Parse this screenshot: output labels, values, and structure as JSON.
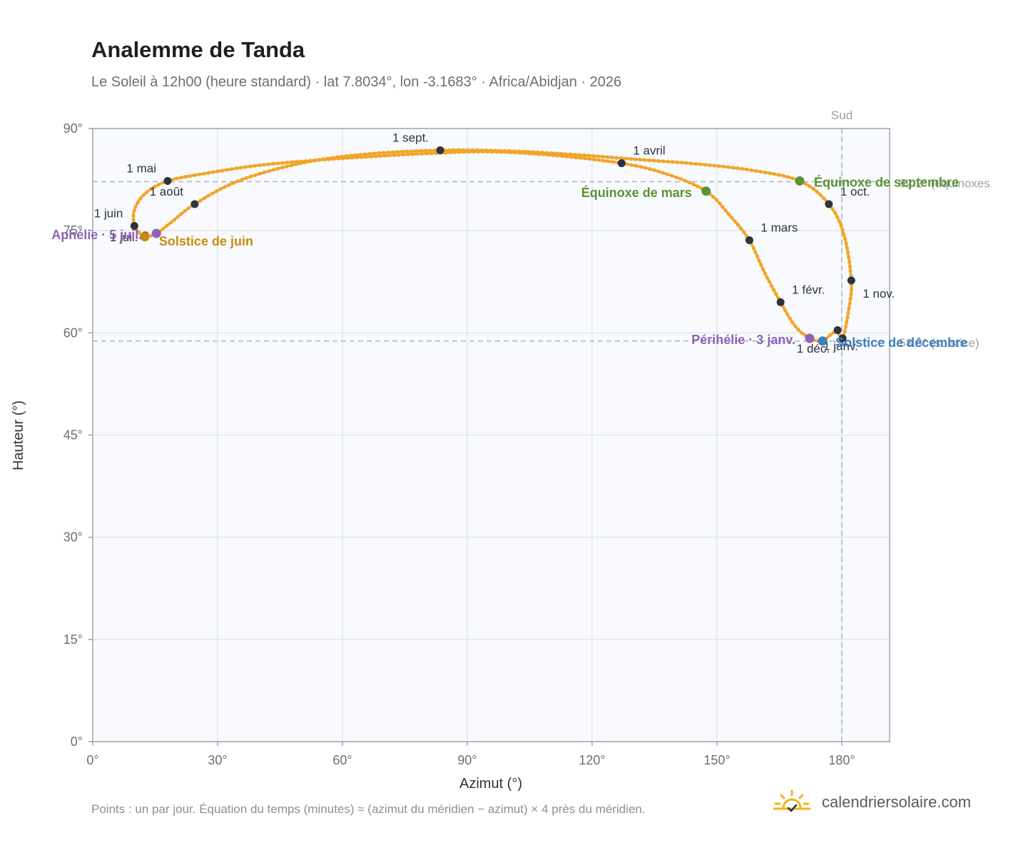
{
  "header": {
    "title": "Analemme de Tanda",
    "subtitle": "Le Soleil à 12h00 (heure standard) · lat 7.8034°, lon -3.1683° · Africa/Abidjan · 2026"
  },
  "footer": {
    "note": "Points : un par jour. Équation du temps (minutes) ≈ (azimut du méridien − azimut) × 4 près du méridien.",
    "brand": "calendriersolaire.com",
    "brand_icon": "sun-logo-icon"
  },
  "colors": {
    "curve": "#f2a52a",
    "month_point": "#2d3340",
    "equinox": "#5a9234",
    "june_solstice": "#c98a10",
    "december_solstice": "#3f7fbf",
    "apsis": "#8f63b8",
    "reference": "#aab4c0",
    "plot_bg": "#f8fafd",
    "grid": "#e3e8ee"
  },
  "chart_data": {
    "type": "scatter",
    "title": "Analemme de Tanda",
    "xlabel": "Azimut (°)",
    "ylabel": "Hauteur (°)",
    "xlim": [
      0,
      191.5
    ],
    "ylim": [
      0,
      90
    ],
    "xticks": [
      "0°",
      "30°",
      "60°",
      "90°",
      "120°",
      "150°",
      "180°"
    ],
    "yticks": [
      "0°",
      "15°",
      "30°",
      "45°",
      "60°",
      "75°",
      "90°"
    ],
    "grid": true,
    "month_points": [
      {
        "label": "1 janv.",
        "az": 179.0,
        "alt": 60.4
      },
      {
        "label": "1 févr.",
        "az": 165.3,
        "alt": 64.5
      },
      {
        "label": "1 mars",
        "az": 157.8,
        "alt": 73.6
      },
      {
        "label": "1 avril",
        "az": 127.1,
        "alt": 84.9
      },
      {
        "label": "1 mai",
        "az": 18.0,
        "alt": 82.3
      },
      {
        "label": "1 juin",
        "az": 10.0,
        "alt": 75.7
      },
      {
        "label": "1 juil.",
        "az": 12.6,
        "alt": 74.3
      },
      {
        "label": "1 août",
        "az": 24.5,
        "alt": 78.9
      },
      {
        "label": "1 sept.",
        "az": 83.5,
        "alt": 86.8
      },
      {
        "label": "1 oct.",
        "az": 176.9,
        "alt": 78.9
      },
      {
        "label": "1 nov.",
        "az": 182.3,
        "alt": 67.7
      },
      {
        "label": "1 déc.",
        "az": 180.2,
        "alt": 59.2
      }
    ],
    "special_points": [
      {
        "label": "Équinoxe de mars",
        "az": 147.4,
        "alt": 80.8,
        "kind": "equinox"
      },
      {
        "label": "Équinoxe de septembre",
        "az": 169.9,
        "alt": 82.3,
        "kind": "equinox"
      },
      {
        "label": "Solstice de juin",
        "az": 12.5,
        "alt": 74.1,
        "kind": "june_solstice"
      },
      {
        "label": "Solstice de décembre",
        "az": 175.4,
        "alt": 58.8,
        "kind": "december_solstice"
      },
      {
        "label": "Aphélie · 5 juil.",
        "az": 15.3,
        "alt": 74.6,
        "kind": "apsis"
      },
      {
        "label": "Périhélie · 3 janv.",
        "az": 172.3,
        "alt": 59.2,
        "kind": "apsis"
      }
    ],
    "reference_lines": [
      {
        "orientation": "vertical",
        "value": 180,
        "label": "Sud"
      },
      {
        "orientation": "horizontal",
        "value": 82.2,
        "label": "82.2° (équinoxes"
      },
      {
        "orientation": "horizontal",
        "value": 58.8,
        "label": "58.8° (solstice)"
      }
    ],
    "analemma_path": [
      [
        179.0,
        60.4
      ],
      [
        177.0,
        59.6
      ],
      [
        175.4,
        58.8
      ],
      [
        172.3,
        59.2
      ],
      [
        168.8,
        61.0
      ],
      [
        165.3,
        64.5
      ],
      [
        161.5,
        68.8
      ],
      [
        157.8,
        73.6
      ],
      [
        153.0,
        77.3
      ],
      [
        147.4,
        80.8
      ],
      [
        138.0,
        83.3
      ],
      [
        127.1,
        84.9
      ],
      [
        110.0,
        86.1
      ],
      [
        95.0,
        86.6
      ],
      [
        83.0,
        86.4
      ],
      [
        70.0,
        86.0
      ],
      [
        55.0,
        85.4
      ],
      [
        40.0,
        84.6
      ],
      [
        28.0,
        83.5
      ],
      [
        18.0,
        82.3
      ],
      [
        12.5,
        80.4
      ],
      [
        10.0,
        78.0
      ],
      [
        10.0,
        75.7
      ],
      [
        11.2,
        74.7
      ],
      [
        12.5,
        74.1
      ],
      [
        15.3,
        74.6
      ],
      [
        19.0,
        76.3
      ],
      [
        24.5,
        78.9
      ],
      [
        35.0,
        82.3
      ],
      [
        50.0,
        84.9
      ],
      [
        65.0,
        86.2
      ],
      [
        83.5,
        86.8
      ],
      [
        100.0,
        86.7
      ],
      [
        115.0,
        86.2
      ],
      [
        130.0,
        85.5
      ],
      [
        145.0,
        84.8
      ],
      [
        158.0,
        83.9
      ],
      [
        169.9,
        82.3
      ],
      [
        176.9,
        78.9
      ],
      [
        180.5,
        74.5
      ],
      [
        182.3,
        67.7
      ],
      [
        181.7,
        63.5
      ],
      [
        180.2,
        59.2
      ],
      [
        179.0,
        60.4
      ]
    ]
  }
}
